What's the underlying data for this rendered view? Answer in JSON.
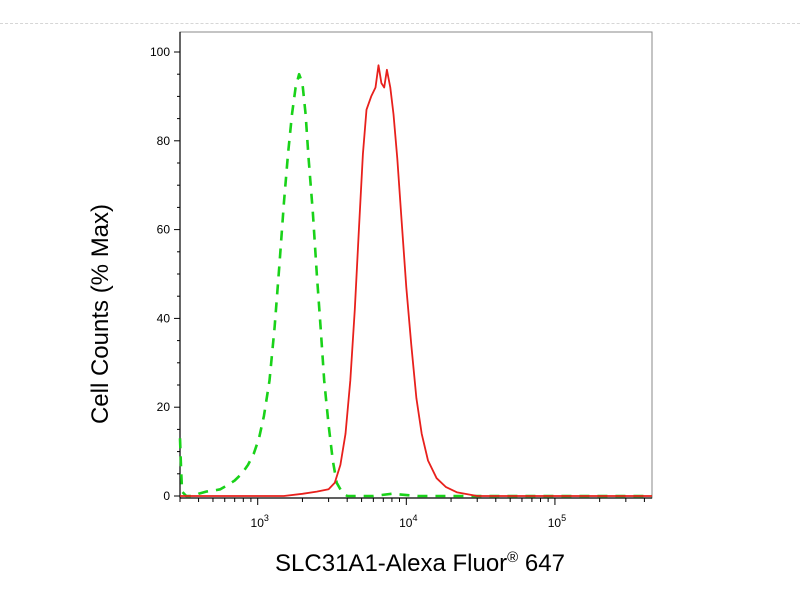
{
  "chart_data": {
    "type": "line",
    "xlabel_main": "SLC31A1-Alexa Fluor",
    "xlabel_sup": "®",
    "xlabel_tail": " 647",
    "ylabel": "Cell Counts (% Max)",
    "x_scale": "log",
    "xlim": [
      300,
      450000
    ],
    "ylim": [
      0,
      100
    ],
    "yticks": [
      0,
      20,
      40,
      60,
      80,
      100
    ],
    "xticks": [
      {
        "value": 1000,
        "base": "10",
        "exp": "3"
      },
      {
        "value": 10000,
        "base": "10",
        "exp": "4"
      },
      {
        "value": 100000,
        "base": "10",
        "exp": "5"
      }
    ],
    "grid": false,
    "series": [
      {
        "color": "#19d219",
        "dash": "dashed",
        "points": [
          [
            300,
            13
          ],
          [
            305,
            6
          ],
          [
            310,
            1
          ],
          [
            330,
            0
          ],
          [
            370,
            0
          ],
          [
            400,
            0.5
          ],
          [
            450,
            1
          ],
          [
            500,
            1.2
          ],
          [
            560,
            1.5
          ],
          [
            630,
            2.5
          ],
          [
            700,
            3.5
          ],
          [
            780,
            5
          ],
          [
            860,
            7
          ],
          [
            940,
            9.5
          ],
          [
            1020,
            13
          ],
          [
            1100,
            18
          ],
          [
            1200,
            26
          ],
          [
            1300,
            38
          ],
          [
            1400,
            52
          ],
          [
            1500,
            66
          ],
          [
            1600,
            77
          ],
          [
            1700,
            86
          ],
          [
            1800,
            92
          ],
          [
            1900,
            95
          ],
          [
            2000,
            93
          ],
          [
            2100,
            86
          ],
          [
            2200,
            76
          ],
          [
            2350,
            64
          ],
          [
            2500,
            50
          ],
          [
            2650,
            38
          ],
          [
            2800,
            26
          ],
          [
            3000,
            16
          ],
          [
            3200,
            8
          ],
          [
            3400,
            3
          ],
          [
            3700,
            0.8
          ],
          [
            4000,
            0
          ],
          [
            6000,
            0
          ],
          [
            8000,
            0.5
          ],
          [
            12000,
            0
          ],
          [
            450000,
            0
          ]
        ]
      },
      {
        "color": "#e8201c",
        "dash": "solid",
        "points": [
          [
            300,
            0
          ],
          [
            1500,
            0
          ],
          [
            2000,
            0.5
          ],
          [
            2500,
            1
          ],
          [
            3000,
            1.5
          ],
          [
            3300,
            3
          ],
          [
            3600,
            7
          ],
          [
            3900,
            14
          ],
          [
            4200,
            26
          ],
          [
            4500,
            42
          ],
          [
            4800,
            60
          ],
          [
            5100,
            77
          ],
          [
            5400,
            87
          ],
          [
            5800,
            90
          ],
          [
            6200,
            92
          ],
          [
            6500,
            97
          ],
          [
            6800,
            93
          ],
          [
            7100,
            92
          ],
          [
            7400,
            96
          ],
          [
            7800,
            92
          ],
          [
            8200,
            86
          ],
          [
            8700,
            76
          ],
          [
            9300,
            62
          ],
          [
            10000,
            47
          ],
          [
            10800,
            34
          ],
          [
            11700,
            22
          ],
          [
            12700,
            14
          ],
          [
            14000,
            8
          ],
          [
            16000,
            4
          ],
          [
            18500,
            2
          ],
          [
            22000,
            0.8
          ],
          [
            30000,
            0
          ],
          [
            450000,
            0
          ]
        ]
      }
    ]
  }
}
